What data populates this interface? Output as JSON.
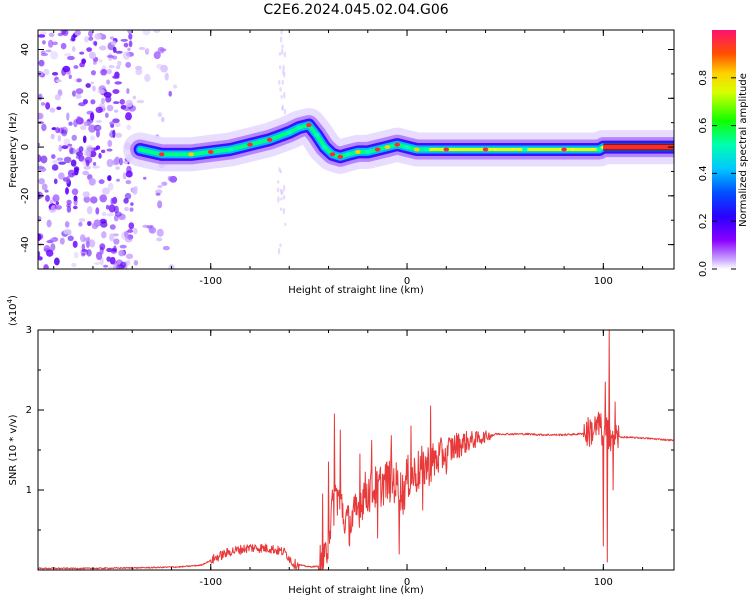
{
  "title": "C2E6.2024.045.02.04.G06",
  "colors": {
    "snr_line": "#e83a3a",
    "signal_cmap": [
      "#ffffff",
      "#b57cff",
      "#6a00ff",
      "#1030ff",
      "#00b8ff",
      "#00ff60",
      "#ffee00",
      "#ff2a2a"
    ]
  },
  "chart_data": [
    {
      "type": "heatmap",
      "xlabel": "Height of straight line (km)",
      "ylabel": "Frequency (Hz)",
      "xlim": [
        -188,
        136
      ],
      "ylim": [
        -50,
        48
      ],
      "x_ticks": [
        {
          "value": -100,
          "label": "-100"
        },
        {
          "value": 0,
          "label": "0"
        },
        {
          "value": 100,
          "label": "100"
        }
      ],
      "y_ticks": [
        {
          "value": -40,
          "label": "-40"
        },
        {
          "value": -20,
          "label": "-20"
        },
        {
          "value": 0,
          "label": "0"
        },
        {
          "value": 20,
          "label": "20"
        },
        {
          "value": 40,
          "label": "40"
        }
      ],
      "ridge": {
        "x": [
          -136,
          -125,
          -110,
          -100,
          -90,
          -80,
          -70,
          -60,
          -55,
          -50,
          -46,
          -42,
          -38,
          -34,
          -30,
          -25,
          -20,
          -15,
          -10,
          -5,
          0,
          5,
          10,
          20,
          40,
          60,
          80,
          98,
          100,
          136
        ],
        "y": [
          -1,
          -3,
          -3,
          -2,
          -1,
          1,
          3,
          6,
          8,
          9,
          5,
          0,
          -3,
          -4,
          -3,
          -2,
          -2,
          -1,
          0,
          1,
          0,
          -1,
          -1,
          -1,
          -1,
          -1,
          -1,
          -1,
          0,
          0
        ]
      },
      "colorbar": {
        "label": "Normalized spectral amplitude",
        "range": [
          0,
          1
        ],
        "ticks": [
          {
            "value": 0,
            "label": "0.0"
          },
          {
            "value": 0.2,
            "label": "0.2"
          },
          {
            "value": 0.4,
            "label": "0.4"
          },
          {
            "value": 0.6,
            "label": "0.6"
          },
          {
            "value": 0.8,
            "label": "0.8"
          }
        ]
      }
    },
    {
      "type": "line",
      "xlabel": "Height of straight line (km)",
      "ylabel": "SNR (10 * v/v)",
      "scale_label": "(x10",
      "scale_exponent": "4",
      "scale_close": ")",
      "xlim": [
        -188,
        136
      ],
      "ylim": [
        0,
        3
      ],
      "x_ticks": [
        {
          "value": -100,
          "label": "-100"
        },
        {
          "value": 0,
          "label": "0"
        },
        {
          "value": 100,
          "label": "100"
        }
      ],
      "y_ticks": [
        {
          "value": 1,
          "label": "1"
        },
        {
          "value": 2,
          "label": "2"
        },
        {
          "value": 3,
          "label": "3"
        }
      ],
      "envelope": {
        "x": [
          -188,
          -160,
          -130,
          -115,
          -105,
          -100,
          -95,
          -90,
          -80,
          -70,
          -62,
          -58,
          -50,
          -42,
          -40,
          -38,
          -36,
          -34,
          -32,
          -30,
          -26,
          -22,
          -18,
          -14,
          -10,
          -6,
          -2,
          0,
          4,
          8,
          12,
          16,
          20,
          25,
          30,
          35,
          40,
          45,
          50,
          60,
          70,
          80,
          88,
          92,
          95,
          98,
          100,
          102,
          104,
          106,
          110,
          120,
          136
        ],
        "y": [
          0.02,
          0.02,
          0.03,
          0.04,
          0.06,
          0.12,
          0.18,
          0.23,
          0.28,
          0.27,
          0.22,
          0.08,
          0.04,
          0.05,
          0.45,
          0.75,
          0.95,
          0.85,
          0.7,
          0.55,
          0.7,
          0.95,
          1.0,
          1.05,
          1.12,
          1.1,
          0.95,
          1.15,
          1.2,
          1.28,
          1.33,
          1.4,
          1.48,
          1.55,
          1.6,
          1.63,
          1.67,
          1.7,
          1.7,
          1.7,
          1.69,
          1.69,
          1.7,
          1.72,
          1.75,
          1.8,
          1.7,
          1.72,
          1.68,
          1.67,
          1.66,
          1.65,
          1.62
        ]
      },
      "spikes": [
        {
          "x": -43,
          "y": 0.95
        },
        {
          "x": -40,
          "y": 1.35
        },
        {
          "x": -37,
          "y": 1.95
        },
        {
          "x": -34,
          "y": 1.75
        },
        {
          "x": -32,
          "y": 0.5
        },
        {
          "x": -24,
          "y": 1.45
        },
        {
          "x": -18,
          "y": 1.62
        },
        {
          "x": -15,
          "y": 0.4
        },
        {
          "x": -8,
          "y": 1.68
        },
        {
          "x": -4,
          "y": 0.2
        },
        {
          "x": 2,
          "y": 1.8
        },
        {
          "x": 8,
          "y": 0.75
        },
        {
          "x": 12,
          "y": 2.05
        },
        {
          "x": 20,
          "y": 1.2
        },
        {
          "x": 98,
          "y": 1.95
        },
        {
          "x": 100,
          "y": 0.3
        },
        {
          "x": 101,
          "y": 2.35
        },
        {
          "x": 102,
          "y": 0.1
        },
        {
          "x": 103,
          "y": 3.0
        },
        {
          "x": 105,
          "y": 1.0
        },
        {
          "x": 106,
          "y": 2.1
        }
      ]
    }
  ]
}
